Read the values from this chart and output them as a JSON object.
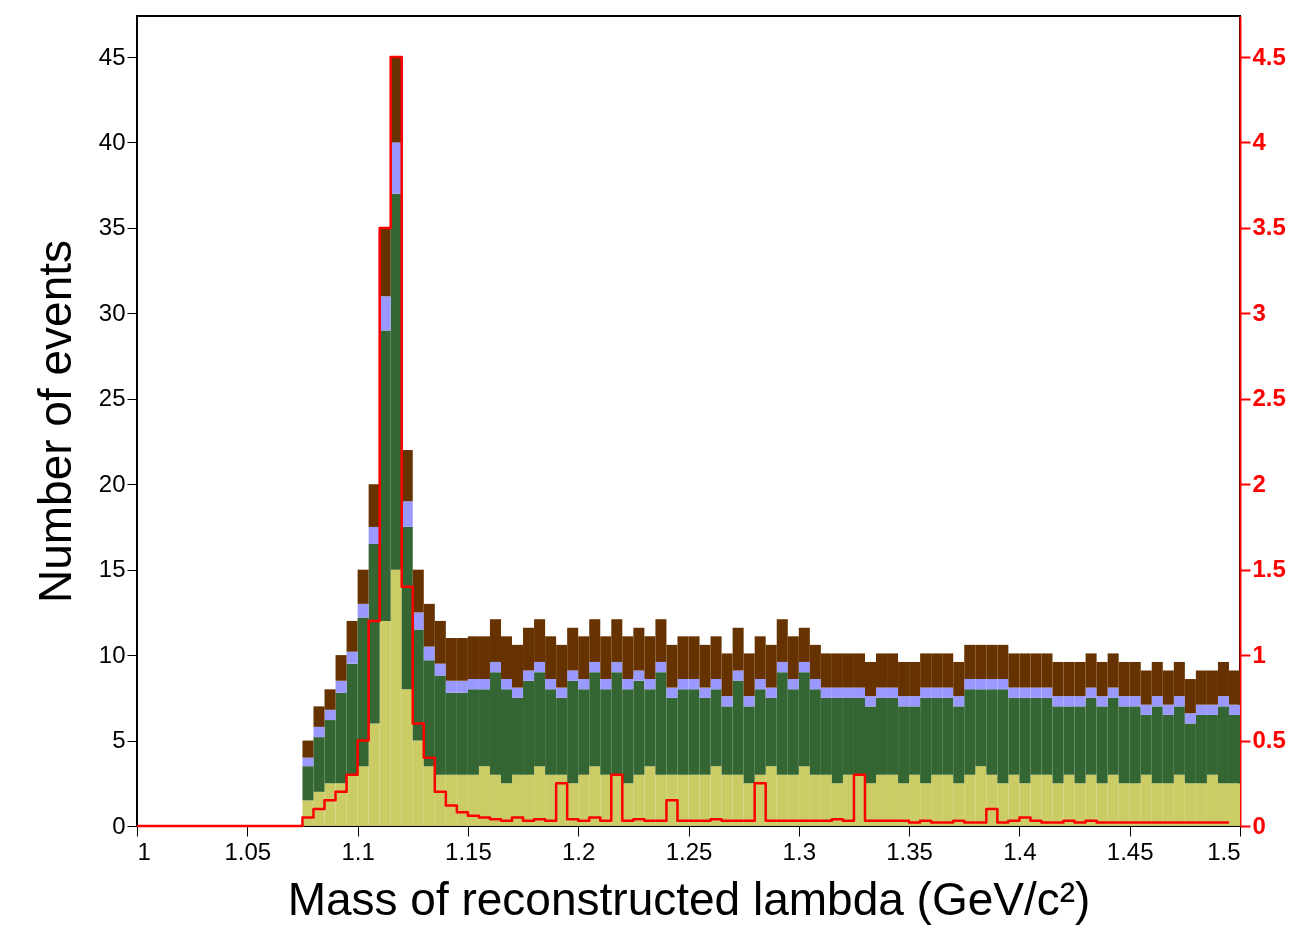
{
  "chart_data": {
    "type": "bar",
    "xlabel": "Mass of reconstructed lambda (GeV/c²)",
    "ylabel": "Number of events",
    "stacked": true,
    "grid": false,
    "x": [
      1.0775,
      1.0825,
      1.0875,
      1.0925,
      1.0975,
      1.1025,
      1.1075,
      1.1125,
      1.1175,
      1.1225,
      1.1275,
      1.1325,
      1.1375,
      1.1425,
      1.1475,
      1.1525,
      1.1575,
      1.1625,
      1.1675,
      1.1725,
      1.1775,
      1.1825,
      1.1875,
      1.1925,
      1.1975,
      1.2025,
      1.2075,
      1.2125,
      1.2175,
      1.2225,
      1.2275,
      1.2325,
      1.2375,
      1.2425,
      1.2475,
      1.2525,
      1.2575,
      1.2625,
      1.2675,
      1.2725,
      1.2775,
      1.2825,
      1.2875,
      1.2925,
      1.2975,
      1.3025,
      1.3075,
      1.3125,
      1.3175,
      1.3225,
      1.3275,
      1.3325,
      1.3375,
      1.3425,
      1.3475,
      1.3525,
      1.3575,
      1.3625,
      1.3675,
      1.3725,
      1.3775,
      1.3825,
      1.3875,
      1.3925,
      1.3975,
      1.4025,
      1.4075,
      1.4125,
      1.4175,
      1.4225,
      1.4275,
      1.4325,
      1.4375,
      1.4425,
      1.4475,
      1.4525,
      1.4575,
      1.4625,
      1.4675,
      1.4725,
      1.4775,
      1.4825,
      1.4875,
      1.4925,
      1.4975
    ],
    "series": [
      {
        "color": "#cccc66",
        "values": [
          1.5,
          2,
          2.5,
          2.5,
          3,
          3.5,
          6,
          12,
          15,
          8,
          5,
          3.5,
          3,
          3,
          3,
          3,
          3.5,
          3,
          2.5,
          3,
          3,
          3.5,
          3,
          3,
          2.5,
          3,
          3.5,
          3,
          3,
          2.5,
          3,
          3.5,
          3,
          3,
          3,
          3,
          3,
          3.5,
          3,
          3,
          2.5,
          3,
          3.5,
          3,
          3,
          3.5,
          3,
          3,
          2.5,
          3,
          3,
          2.5,
          3,
          3,
          2.5,
          3,
          2.5,
          3,
          3,
          2.5,
          3,
          3.5,
          3,
          2.5,
          3,
          2.5,
          3,
          3,
          2.5,
          3,
          2.5,
          3,
          2.5,
          3,
          2.5,
          2.5,
          3,
          2.5,
          2.5,
          3,
          2.5,
          2.5,
          3,
          2.5,
          2.5
        ]
      },
      {
        "color": "#336633",
        "values": [
          2,
          3.2,
          3.7,
          5.3,
          6.5,
          8.7,
          10.5,
          17,
          22,
          9.5,
          6.5,
          6.2,
          5.8,
          4.8,
          4.8,
          5,
          4.5,
          6,
          5.5,
          4.5,
          5.5,
          5.5,
          5,
          4.5,
          6,
          5,
          5.5,
          5,
          6,
          5.5,
          5.5,
          4.5,
          6,
          4.5,
          5,
          5,
          4.5,
          4.5,
          4,
          5.5,
          4.5,
          5,
          4,
          6,
          5,
          5.5,
          5,
          4.5,
          5,
          4.5,
          4.5,
          4.5,
          4.5,
          4.5,
          4.5,
          4,
          5,
          4.5,
          4.5,
          4.5,
          5,
          4.5,
          5,
          5.5,
          4.5,
          5,
          4.5,
          4.5,
          4.5,
          4,
          4.5,
          4.5,
          4.5,
          4.5,
          4.5,
          4.5,
          3.5,
          4.5,
          4,
          4,
          3.5,
          4,
          3.5,
          4.5,
          4
        ]
      },
      {
        "color": "#9999ff",
        "values": [
          0.5,
          0.6,
          0.6,
          0.7,
          0.7,
          0.8,
          1,
          2,
          3,
          1.5,
          1,
          0.8,
          0.7,
          0.7,
          0.7,
          0.6,
          0.6,
          0.6,
          0.6,
          0.6,
          0.6,
          0.6,
          0.6,
          0.6,
          0.6,
          0.6,
          0.6,
          0.6,
          0.6,
          0.6,
          0.6,
          0.6,
          0.6,
          0.6,
          0.6,
          0.6,
          0.6,
          0.6,
          0.6,
          0.6,
          0.6,
          0.6,
          0.6,
          0.6,
          0.6,
          0.6,
          0.6,
          0.6,
          0.6,
          0.6,
          0.6,
          0.6,
          0.6,
          0.6,
          0.6,
          0.6,
          0.6,
          0.6,
          0.6,
          0.6,
          0.6,
          0.6,
          0.6,
          0.6,
          0.6,
          0.6,
          0.6,
          0.6,
          0.6,
          0.6,
          0.6,
          0.6,
          0.6,
          0.6,
          0.6,
          0.6,
          0.6,
          0.6,
          0.6,
          0.6,
          0.6,
          0.6,
          0.6,
          0.6,
          0.6
        ]
      },
      {
        "color": "#663300",
        "values": [
          1,
          1.2,
          1.2,
          1.5,
          1.8,
          2,
          2.5,
          4,
          5,
          3,
          2.5,
          2.5,
          2.5,
          2.5,
          2.5,
          2.5,
          2.5,
          2.5,
          2.5,
          2.5,
          2.5,
          2.5,
          2.5,
          2.5,
          2.5,
          2.5,
          2.5,
          2.5,
          2.5,
          2.5,
          2.5,
          2.5,
          2.5,
          2.5,
          2.5,
          2.5,
          2.5,
          2.5,
          2.5,
          2.5,
          2.5,
          2.5,
          2.5,
          2.5,
          2.5,
          2,
          2,
          2,
          2,
          2,
          2,
          2,
          2,
          2,
          2,
          2,
          2,
          2,
          2,
          2,
          2,
          2,
          2,
          2,
          2,
          2,
          2,
          2,
          2,
          2,
          2,
          2,
          2,
          2,
          2,
          2,
          2,
          2,
          2,
          2,
          2,
          2,
          2,
          2,
          2
        ]
      },
      {
        "type": "step",
        "axis": "y2",
        "color": "#ff0000",
        "x": [
          1.0,
          1.075,
          1.08,
          1.085,
          1.09,
          1.095,
          1.1,
          1.105,
          1.11,
          1.115,
          1.12,
          1.125,
          1.13,
          1.135,
          1.14,
          1.145,
          1.15,
          1.155,
          1.16,
          1.165,
          1.17,
          1.175,
          1.18,
          1.185,
          1.19,
          1.195,
          1.2,
          1.205,
          1.21,
          1.215,
          1.22,
          1.225,
          1.23,
          1.235,
          1.24,
          1.245,
          1.25,
          1.255,
          1.26,
          1.265,
          1.27,
          1.275,
          1.28,
          1.285,
          1.29,
          1.295,
          1.3,
          1.305,
          1.31,
          1.315,
          1.32,
          1.325,
          1.33,
          1.335,
          1.34,
          1.345,
          1.35,
          1.355,
          1.36,
          1.365,
          1.37,
          1.375,
          1.38,
          1.385,
          1.39,
          1.395,
          1.4,
          1.405,
          1.41,
          1.415,
          1.42,
          1.425,
          1.43,
          1.435,
          1.44,
          1.445,
          1.45,
          1.455,
          1.46,
          1.465,
          1.47,
          1.475,
          1.48,
          1.485,
          1.49,
          1.495
        ],
        "values": [
          0,
          0.05,
          0.1,
          0.15,
          0.2,
          0.3,
          0.5,
          1.2,
          3.5,
          4.5,
          1.4,
          0.6,
          0.4,
          0.2,
          0.12,
          0.08,
          0.06,
          0.05,
          0.04,
          0.03,
          0.05,
          0.03,
          0.04,
          0.03,
          0.25,
          0.04,
          0.03,
          0.05,
          0.03,
          0.3,
          0.03,
          0.04,
          0.03,
          0.03,
          0.15,
          0.03,
          0.03,
          0.03,
          0.04,
          0.03,
          0.03,
          0.03,
          0.25,
          0.03,
          0.03,
          0.03,
          0.03,
          0.03,
          0.03,
          0.04,
          0.03,
          0.3,
          0.03,
          0.03,
          0.03,
          0.03,
          0.02,
          0.03,
          0.02,
          0.02,
          0.03,
          0.02,
          0.02,
          0.1,
          0.02,
          0.03,
          0.05,
          0.03,
          0.02,
          0.02,
          0.03,
          0.02,
          0.03,
          0.02,
          0.02,
          0.02,
          0.02,
          0.02,
          0.02,
          0.02,
          0.02,
          0.02,
          0.02,
          0.02,
          0.02,
          0.02
        ]
      }
    ],
    "xlim": [
      1,
      1.5
    ],
    "xticks": [
      1,
      1.05,
      1.1,
      1.15,
      1.2,
      1.25,
      1.3,
      1.35,
      1.4,
      1.45,
      1.5
    ],
    "ylim": [
      0,
      47.4
    ],
    "yticks": [
      0,
      5,
      10,
      15,
      20,
      25,
      30,
      35,
      40,
      45
    ],
    "y2lim": [
      0,
      4.74
    ],
    "y2ticks": [
      0,
      0.5,
      1,
      1.5,
      2,
      2.5,
      3,
      3.5,
      4,
      4.5
    ]
  }
}
